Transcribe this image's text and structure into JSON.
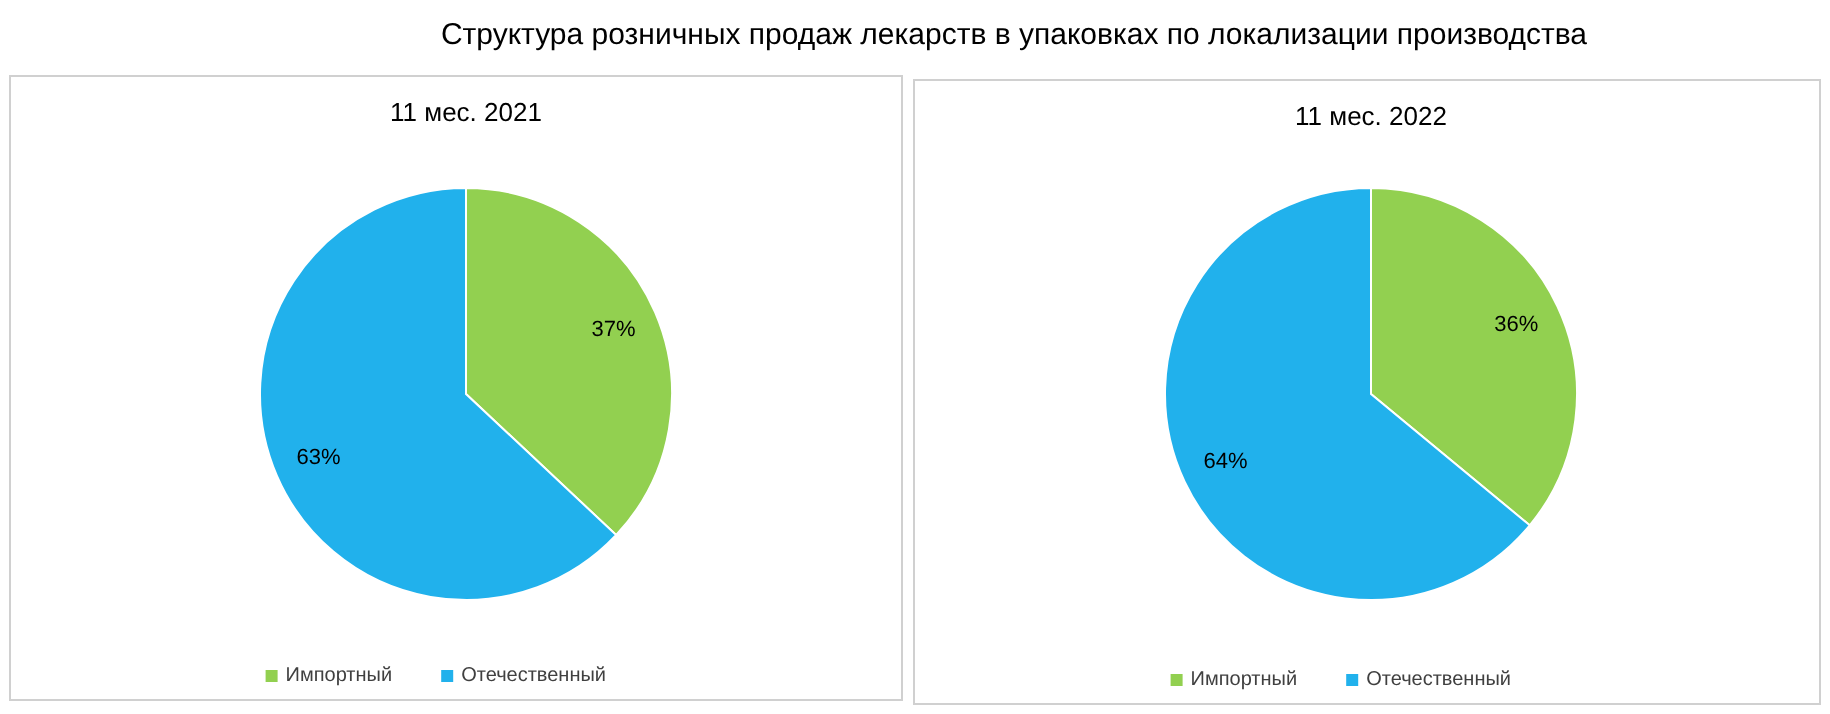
{
  "chart_data": [
    {
      "type": "pie",
      "title": "Структура розничных продаж лекарств в упаковках по локализации производства",
      "subtitle": "11 мес. 2021",
      "categories": [
        "Импортный",
        "Отечественный"
      ],
      "values": [
        37,
        63
      ],
      "value_labels": [
        "37%",
        "63%"
      ],
      "colors": [
        "#92d050",
        "#21b1ec"
      ],
      "legend": "bottom"
    },
    {
      "type": "pie",
      "title": "11 мес. 2022",
      "categories": [
        "Импортный",
        "Отечественный"
      ],
      "values": [
        36,
        64
      ],
      "value_labels": [
        "36%",
        "64%"
      ],
      "colors": [
        "#92d050",
        "#21b1ec"
      ],
      "legend": "bottom"
    }
  ]
}
